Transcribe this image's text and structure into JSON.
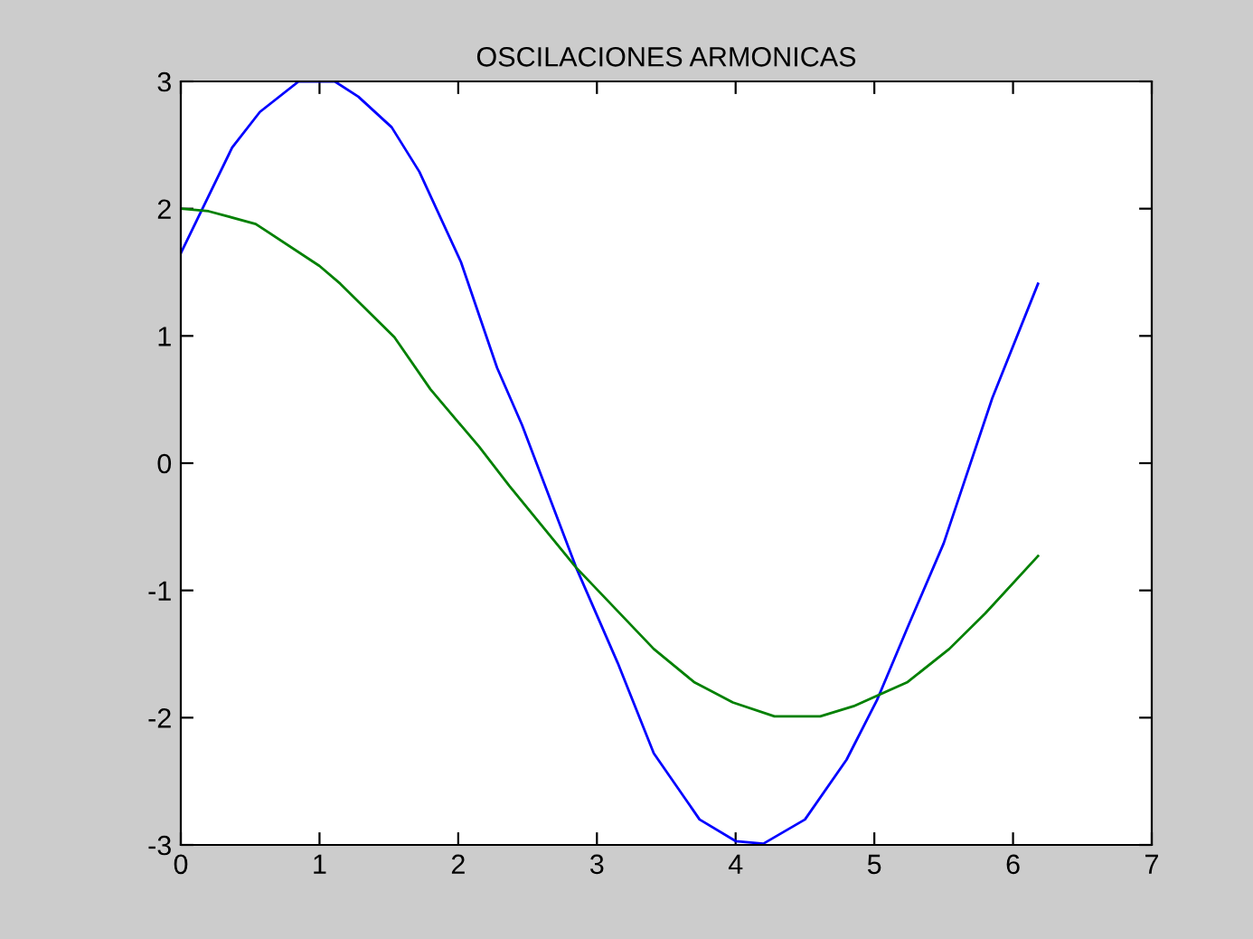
{
  "chart_data": {
    "type": "line",
    "title": "OSCILACIONES ARMONICAS",
    "xlim": [
      0,
      7
    ],
    "xticks": [
      0,
      1,
      2,
      3,
      4,
      5,
      6,
      7
    ],
    "ylim": [
      -3,
      3
    ],
    "yticks": [
      -3,
      -2,
      -1,
      0,
      1,
      2,
      3
    ],
    "grid": false,
    "legend": false,
    "marker": "none",
    "line_style": "solid",
    "series": [
      {
        "color": "#0000ff",
        "x": [
          0,
          0.37,
          0.57,
          0.85,
          1.11,
          1.28,
          1.52,
          1.72,
          2.02,
          2.28,
          2.46,
          2.85,
          3.15,
          3.41,
          3.74,
          4.0,
          4.2,
          4.5,
          4.8,
          5.02,
          5.24,
          5.5,
          5.85,
          6.18
        ],
        "values": [
          1.65,
          2.48,
          2.76,
          3.0,
          3.0,
          2.88,
          2.64,
          2.29,
          1.58,
          0.75,
          0.3,
          -0.82,
          -1.57,
          -2.28,
          -2.8,
          -2.97,
          -2.99,
          -2.8,
          -2.33,
          -1.86,
          -1.29,
          -0.63,
          0.51,
          1.41
        ]
      },
      {
        "color": "#008000",
        "x": [
          0,
          0.2,
          0.54,
          1.0,
          1.15,
          1.54,
          1.8,
          2.15,
          2.37,
          2.85,
          3.41,
          3.7,
          3.98,
          4.28,
          4.61,
          4.85,
          5.24,
          5.54,
          5.8,
          6.18
        ],
        "values": [
          2.0,
          1.98,
          1.88,
          1.55,
          1.41,
          0.99,
          0.58,
          0.13,
          -0.18,
          -0.82,
          -1.46,
          -1.72,
          -1.88,
          -1.99,
          -1.99,
          -1.91,
          -1.72,
          -1.46,
          -1.18,
          -0.73
        ]
      }
    ]
  }
}
